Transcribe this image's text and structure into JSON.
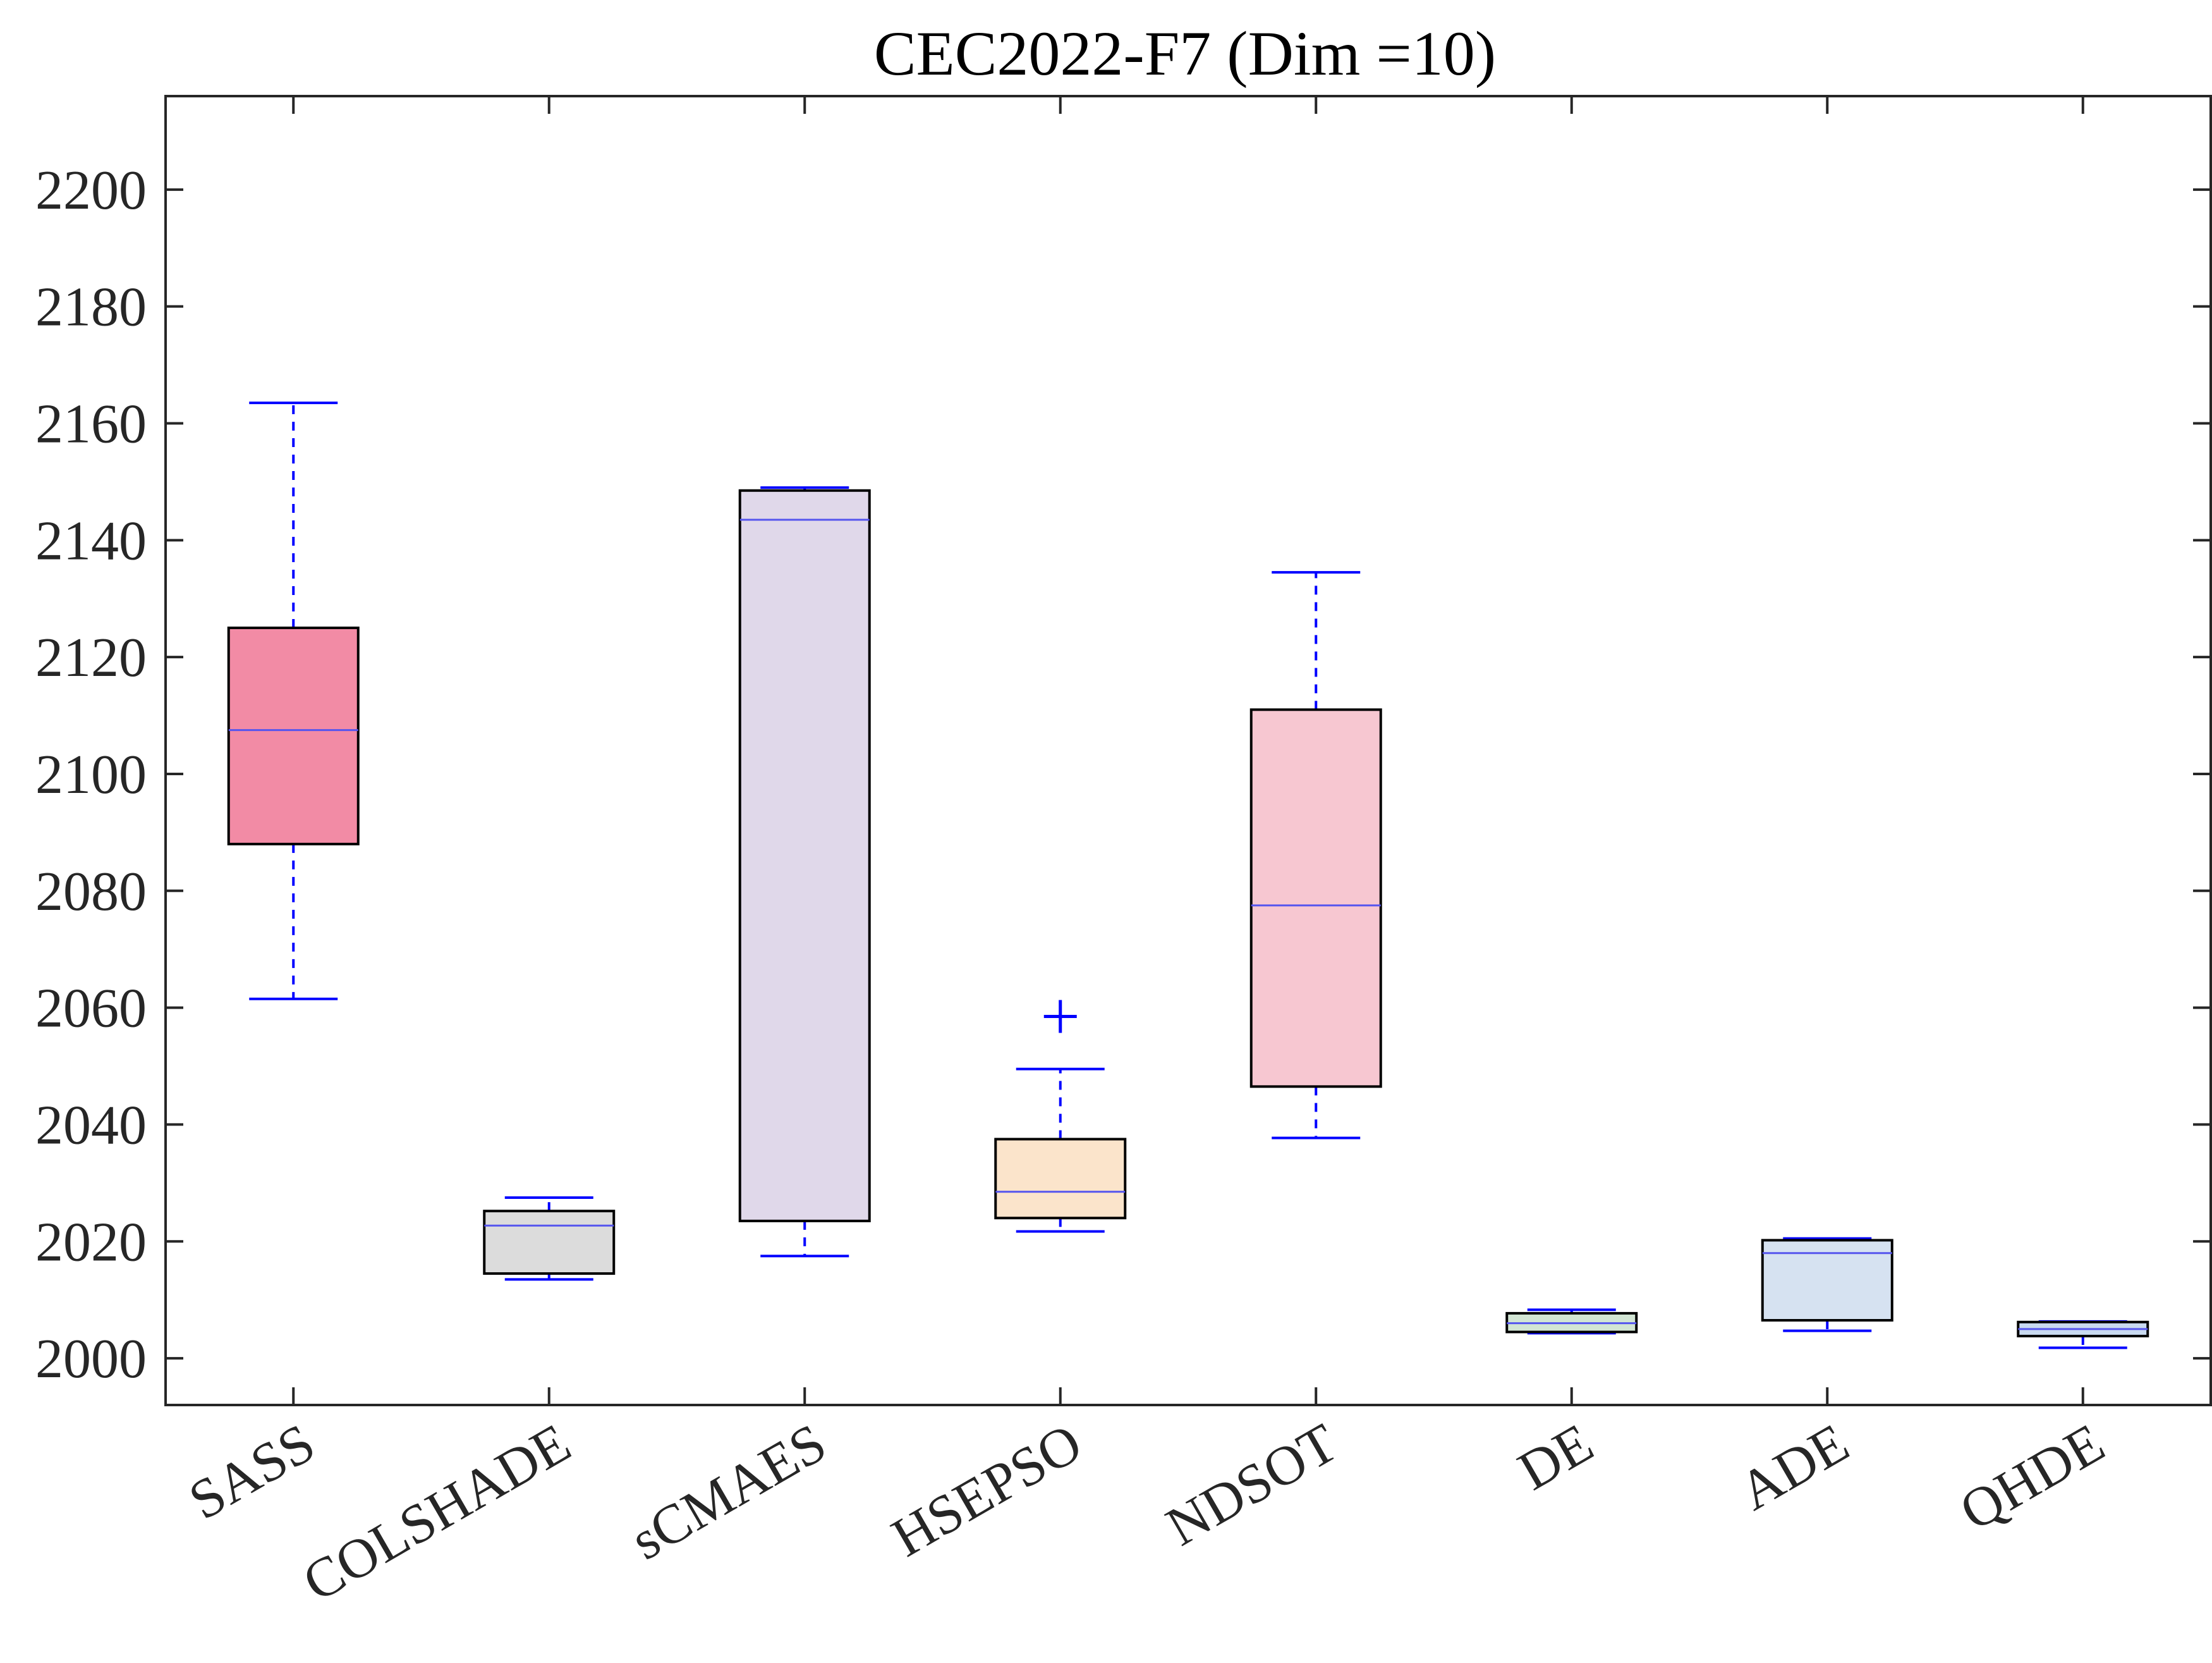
{
  "chart_data": {
    "type": "boxplot",
    "title": "CEC2022-F7 (Dim =10)",
    "xlabel": "",
    "ylabel": "",
    "ylim": [
      1992,
      2216
    ],
    "yticks": [
      2000,
      2020,
      2040,
      2060,
      2080,
      2100,
      2120,
      2140,
      2160,
      2180,
      2200
    ],
    "ytick_labels": [
      "2000",
      "2020",
      "2040",
      "2060",
      "2080",
      "2100",
      "2120",
      "2140",
      "2160",
      "2180",
      "2200"
    ],
    "grid": false,
    "whisker_color": "#0000ff",
    "median_color": "#5555ee",
    "box_edge_color": "#000000",
    "categories": [
      "SASS",
      "COLSHADE",
      "sCMAES",
      "HSEPSO",
      "NDSOT",
      "DE",
      "ADE",
      "QHDE"
    ],
    "boxes": [
      {
        "label": "SASS",
        "whisker_low": 2061.5,
        "q1": 2088.0,
        "median": 2107.5,
        "q3": 2125.0,
        "whisker_high": 2163.5,
        "outliers": [],
        "fill": "#f28ba5"
      },
      {
        "label": "COLSHADE",
        "whisker_low": 2013.5,
        "q1": 2014.5,
        "median": 2022.7,
        "q3": 2025.2,
        "whisker_high": 2027.5,
        "outliers": [],
        "fill": "#dcdcdc"
      },
      {
        "label": "sCMAES",
        "whisker_low": 2017.5,
        "q1": 2023.5,
        "median": 2143.5,
        "q3": 2148.5,
        "whisker_high": 2149.0,
        "outliers": [],
        "fill": "#e0d8ea"
      },
      {
        "label": "HSEPSO",
        "whisker_low": 2021.7,
        "q1": 2024.0,
        "median": 2028.5,
        "q3": 2037.5,
        "whisker_high": 2049.5,
        "outliers": [
          2058.5
        ],
        "fill": "#fbe4cb"
      },
      {
        "label": "NDSOT",
        "whisker_low": 2037.7,
        "q1": 2046.5,
        "median": 2077.5,
        "q3": 2111.0,
        "whisker_high": 2134.5,
        "outliers": [],
        "fill": "#f7c7d1"
      },
      {
        "label": "DE",
        "whisker_low": 2004.3,
        "q1": 2004.5,
        "median": 2006.0,
        "q3": 2007.7,
        "whisker_high": 2008.3,
        "outliers": [],
        "fill": "#d2e5d4"
      },
      {
        "label": "ADE",
        "whisker_low": 2004.7,
        "q1": 2006.5,
        "median": 2018.0,
        "q3": 2020.2,
        "whisker_high": 2020.5,
        "outliers": [],
        "fill": "#d6e2f1"
      },
      {
        "label": "QHDE",
        "whisker_low": 2001.8,
        "q1": 2003.8,
        "median": 2005.0,
        "q3": 2006.2,
        "whisker_high": 2006.3,
        "outliers": [],
        "fill": "#c9daf0"
      }
    ]
  }
}
